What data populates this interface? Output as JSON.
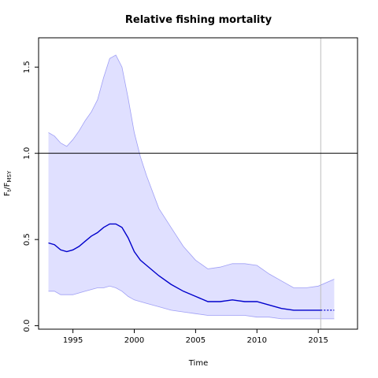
{
  "chart_data": {
    "type": "area",
    "title": "Relative fishing mortality",
    "xlabel": "Time",
    "ylabel": {
      "main": "F",
      "sub1": "t",
      "sep": "/F",
      "sub2": "MSY"
    },
    "xlim": [
      1992.2,
      2018.2
    ],
    "ylim": [
      -0.02,
      1.67
    ],
    "x_ticks": [
      1995,
      2000,
      2005,
      2010,
      2015
    ],
    "x_tick_labels": [
      "1995",
      "2000",
      "2005",
      "2010",
      "2015"
    ],
    "y_ticks": [
      0.0,
      0.5,
      1.0,
      1.5
    ],
    "y_tick_labels": [
      "0.0",
      "0.5",
      "1.0",
      "1.5"
    ],
    "reference_line_y": 1.0,
    "last_data_year": 2015.2,
    "grid": false,
    "colors": {
      "band_fill": "#e0e0ff",
      "band_edge": "#9f9ff5",
      "median": "#0000cc",
      "reference": "#000000",
      "vertical_marker": "#bdbdbd"
    },
    "series": [
      {
        "name": "median",
        "x": [
          1993,
          1993.5,
          1994,
          1994.5,
          1995,
          1995.5,
          1996,
          1996.5,
          1997,
          1997.5,
          1998,
          1998.5,
          1999,
          1999.5,
          2000,
          2000.5,
          2001,
          2002,
          2003,
          2004,
          2005,
          2006,
          2007,
          2008,
          2009,
          2010,
          2011,
          2012,
          2013,
          2014,
          2015,
          2015.2
        ],
        "y": [
          0.48,
          0.47,
          0.44,
          0.43,
          0.44,
          0.46,
          0.49,
          0.52,
          0.54,
          0.57,
          0.59,
          0.59,
          0.57,
          0.51,
          0.43,
          0.38,
          0.35,
          0.29,
          0.24,
          0.2,
          0.17,
          0.14,
          0.14,
          0.15,
          0.14,
          0.14,
          0.12,
          0.1,
          0.09,
          0.09,
          0.09,
          0.09
        ]
      },
      {
        "name": "median_projection",
        "x": [
          2015.2,
          2015.6,
          2016,
          2016.3
        ],
        "y": [
          0.09,
          0.09,
          0.09,
          0.09
        ]
      },
      {
        "name": "upper",
        "x": [
          1993,
          1993.5,
          1994,
          1994.5,
          1995,
          1995.5,
          1996,
          1996.5,
          1997,
          1997.5,
          1998,
          1998.5,
          1999,
          1999.5,
          2000,
          2000.5,
          2001,
          2002,
          2003,
          2004,
          2005,
          2006,
          2007,
          2008,
          2009,
          2010,
          2011,
          2012,
          2013,
          2014,
          2015,
          2016.3
        ],
        "y": [
          1.12,
          1.1,
          1.06,
          1.04,
          1.08,
          1.13,
          1.19,
          1.24,
          1.31,
          1.44,
          1.55,
          1.57,
          1.5,
          1.32,
          1.12,
          0.98,
          0.87,
          0.68,
          0.57,
          0.46,
          0.38,
          0.33,
          0.34,
          0.36,
          0.36,
          0.35,
          0.3,
          0.26,
          0.22,
          0.22,
          0.23,
          0.27
        ]
      },
      {
        "name": "lower",
        "x": [
          1993,
          1993.5,
          1994,
          1994.5,
          1995,
          1995.5,
          1996,
          1996.5,
          1997,
          1997.5,
          1998,
          1998.5,
          1999,
          1999.5,
          2000,
          2000.5,
          2001,
          2002,
          2003,
          2004,
          2005,
          2006,
          2007,
          2008,
          2009,
          2010,
          2011,
          2012,
          2013,
          2014,
          2015,
          2016.3
        ],
        "y": [
          0.2,
          0.2,
          0.18,
          0.18,
          0.18,
          0.19,
          0.2,
          0.21,
          0.22,
          0.22,
          0.23,
          0.22,
          0.2,
          0.17,
          0.15,
          0.14,
          0.13,
          0.11,
          0.09,
          0.08,
          0.07,
          0.06,
          0.06,
          0.06,
          0.06,
          0.05,
          0.05,
          0.04,
          0.04,
          0.04,
          0.04,
          0.04
        ]
      }
    ]
  }
}
